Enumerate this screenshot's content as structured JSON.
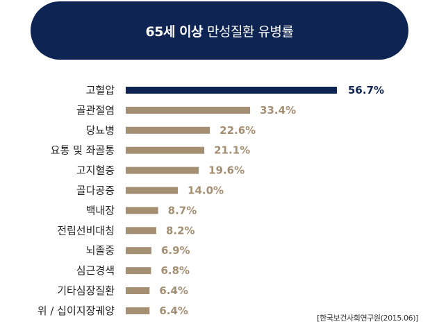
{
  "title": {
    "strong": "65세 이상",
    "light": "만성질환 유병률"
  },
  "source": "[한국보건사회연구원(2015.06)]",
  "colors": {
    "highlight": "#0e2452",
    "bar": "#a48f73",
    "banner": "#0e2452"
  },
  "chart_data": {
    "type": "bar",
    "orientation": "horizontal",
    "categories": [
      "고혈압",
      "골관절염",
      "당뇨병",
      "요통 및 좌골통",
      "고지혈증",
      "골다공증",
      "백내장",
      "전립선비대칭",
      "뇌졸중",
      "심근경색",
      "기타심장질환",
      "위 / 십이지장궤양"
    ],
    "values": [
      56.7,
      33.4,
      22.6,
      21.1,
      19.6,
      14.0,
      8.7,
      8.2,
      6.9,
      6.8,
      6.4,
      6.4
    ],
    "value_labels": [
      "56.7%",
      "33.4%",
      "22.6%",
      "21.1%",
      "19.6%",
      "14.0%",
      "8.7%",
      "8.2%",
      "6.9%",
      "6.8%",
      "6.4%",
      "6.4%"
    ],
    "highlight_index": 0,
    "title": "65세 이상 만성질환 유병률",
    "unit": "%",
    "xlim": [
      0,
      56.7
    ]
  }
}
